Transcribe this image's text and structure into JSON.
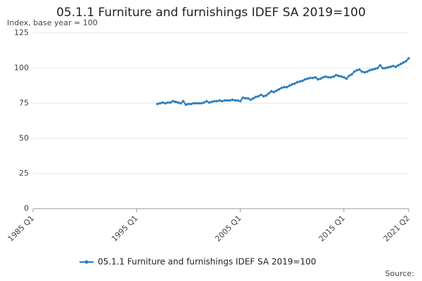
{
  "chart_data": {
    "type": "line",
    "title": "05.1.1 Furniture and furnishings IDEF SA 2019=100",
    "subtitle": "Index, base year = 100",
    "source": "Source:",
    "categories": [
      "1985 Q1",
      null,
      null,
      null,
      null,
      null,
      null,
      null,
      null,
      null,
      null,
      null,
      null,
      null,
      null,
      null,
      null,
      null,
      null,
      null,
      null,
      null,
      null,
      null,
      null,
      null,
      null,
      null,
      null,
      null,
      null,
      null,
      null,
      null,
      null,
      null,
      null,
      null,
      null,
      null,
      "1995 Q1",
      null,
      null,
      null,
      null,
      null,
      null,
      null,
      null,
      null,
      null,
      null,
      null,
      null,
      null,
      null,
      null,
      null,
      null,
      null,
      null,
      null,
      null,
      null,
      null,
      null,
      null,
      null,
      null,
      null,
      null,
      null,
      null,
      null,
      null,
      null,
      null,
      null,
      null,
      null,
      "2005 Q1",
      null,
      null,
      null,
      null,
      null,
      null,
      null,
      null,
      null,
      null,
      null,
      null,
      null,
      null,
      null,
      null,
      null,
      null,
      null,
      null,
      null,
      null,
      null,
      null,
      null,
      null,
      null,
      null,
      null,
      null,
      null,
      null,
      null,
      null,
      null,
      null,
      null,
      null,
      null,
      "2015 Q1",
      null,
      null,
      null,
      null,
      null,
      null,
      null,
      null,
      null,
      null,
      null,
      null,
      null,
      null,
      null,
      null,
      null,
      null,
      null,
      null,
      null,
      null,
      null,
      null,
      "2021 Q2"
    ],
    "series": [
      {
        "name": "05.1.1 Furniture and furnishings IDEF SA 2019=100",
        "color": "#2b7bb9",
        "values": [
          null,
          null,
          null,
          null,
          null,
          null,
          null,
          null,
          null,
          null,
          null,
          null,
          null,
          null,
          null,
          null,
          null,
          null,
          null,
          null,
          null,
          null,
          null,
          null,
          null,
          null,
          null,
          null,
          null,
          null,
          null,
          null,
          null,
          null,
          null,
          null,
          null,
          null,
          null,
          null,
          null,
          null,
          null,
          null,
          null,
          null,
          null,
          null,
          74.5,
          75,
          75.5,
          75,
          75.5,
          75.5,
          76.5,
          76,
          75.5,
          75,
          76.5,
          74,
          74.5,
          74.5,
          75,
          75,
          75,
          75,
          75.5,
          76.5,
          75.5,
          76,
          76.5,
          76.5,
          77,
          76.5,
          77,
          77,
          77,
          77.5,
          77,
          77,
          76.5,
          79,
          78.5,
          78.5,
          77.5,
          78.5,
          79.5,
          80,
          81,
          80,
          80.5,
          82,
          83.5,
          83,
          84,
          85,
          86,
          86.5,
          86.5,
          87.5,
          88.5,
          89,
          90,
          90.5,
          91,
          92,
          92.5,
          93,
          93,
          93.5,
          92,
          92.5,
          93.5,
          94,
          93.5,
          93.5,
          94,
          95,
          94.5,
          94,
          93.5,
          92.5,
          94.5,
          95.5,
          97.5,
          98.5,
          99,
          97.5,
          97,
          97.5,
          98.5,
          99,
          99.5,
          100,
          102,
          100,
          100,
          100.5,
          101,
          101.5,
          101,
          102,
          103,
          104,
          105,
          107
        ]
      }
    ],
    "ylim": [
      0,
      125
    ],
    "yticks": [
      0,
      25,
      50,
      75,
      100,
      125
    ],
    "grid": true
  }
}
